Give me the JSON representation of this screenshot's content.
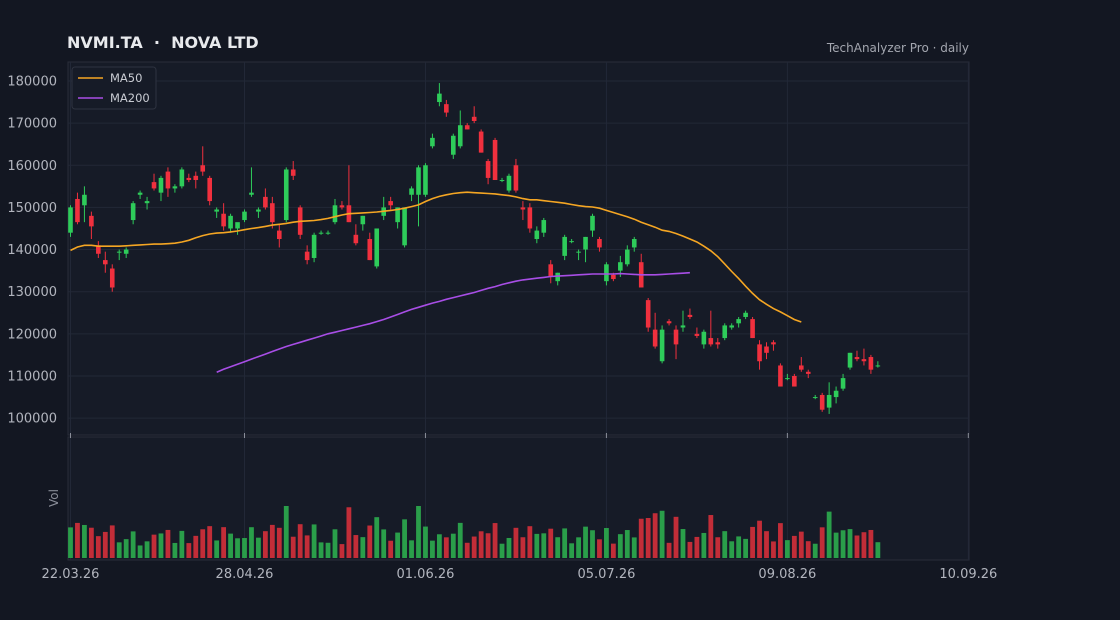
{
  "header": {
    "title": "NVMI.TA  ·  NOVA LTD",
    "source": "TechAnalyzer Pro · daily"
  },
  "colors": {
    "background": "#131722",
    "panel": "#161b27",
    "grid": "#222837",
    "up": "#2ecc5a",
    "down": "#f0303e",
    "ma50": "#f5a623",
    "ma200": "#a84ee6",
    "axis_text": "#b2b5be"
  },
  "chart_data": {
    "type": "candlestick",
    "title": "NVMI.TA  ·  NOVA LTD",
    "ylabel": "",
    "volume_label": "Vol",
    "ylim": [
      96000,
      184500
    ],
    "yticks": [
      100000,
      110000,
      120000,
      130000,
      140000,
      150000,
      160000,
      170000,
      180000
    ],
    "xticks": [
      "22.03.26",
      "28.04.26",
      "01.06.26",
      "05.07.26",
      "09.08.26",
      "10.09.26"
    ],
    "xtick_index": [
      0,
      25,
      51,
      77,
      103,
      129
    ],
    "grid": true,
    "legend": {
      "position": "top-left",
      "entries": [
        "MA50",
        "MA200"
      ]
    },
    "candles": [
      [
        144000,
        150500,
        143000,
        150000
      ],
      [
        152000,
        153500,
        146000,
        146500
      ],
      [
        150500,
        155000,
        146500,
        153000
      ],
      [
        148000,
        149000,
        142500,
        145500
      ],
      [
        141000,
        142000,
        138000,
        139000
      ],
      [
        137500,
        139500,
        134500,
        136500
      ],
      [
        135500,
        136500,
        130000,
        131000
      ],
      [
        139500,
        140000,
        137500,
        139500
      ],
      [
        139000,
        140500,
        138000,
        140000
      ],
      [
        147000,
        151500,
        146000,
        151000
      ],
      [
        153000,
        154000,
        152000,
        153500
      ],
      [
        151000,
        152500,
        149500,
        151500
      ],
      [
        156000,
        158000,
        154000,
        154500
      ],
      [
        153500,
        157500,
        151500,
        157000
      ],
      [
        158500,
        159500,
        152500,
        154500
      ],
      [
        154500,
        155500,
        153500,
        155000
      ],
      [
        155000,
        159500,
        154500,
        159000
      ],
      [
        157000,
        158000,
        156000,
        156500
      ],
      [
        157500,
        158500,
        154500,
        156500
      ],
      [
        160000,
        164500,
        157500,
        158500
      ],
      [
        157000,
        157500,
        150500,
        151500
      ],
      [
        149000,
        150000,
        147500,
        149500
      ],
      [
        148500,
        151000,
        144500,
        145500
      ],
      [
        145000,
        148500,
        144000,
        148000
      ],
      [
        145000,
        146000,
        143500,
        146500
      ],
      [
        147000,
        149500,
        146500,
        149000
      ],
      [
        153000,
        159500,
        152500,
        153500
      ],
      [
        149000,
        150000,
        147500,
        149500
      ],
      [
        152500,
        154500,
        149500,
        150000
      ],
      [
        151000,
        152500,
        145000,
        146500
      ],
      [
        144500,
        146000,
        140500,
        142500
      ],
      [
        147000,
        159500,
        146500,
        159000
      ],
      [
        159000,
        161000,
        156500,
        157500
      ],
      [
        150000,
        150500,
        142500,
        143500
      ],
      [
        139500,
        141000,
        136500,
        137500
      ],
      [
        138000,
        144000,
        137000,
        143500
      ],
      [
        144000,
        144500,
        143500,
        144000
      ],
      [
        144000,
        144500,
        143500,
        144000
      ],
      [
        146500,
        152000,
        146000,
        150500
      ],
      [
        150500,
        151500,
        149500,
        150000
      ],
      [
        150500,
        160000,
        146500,
        146500
      ],
      [
        143500,
        146000,
        141000,
        141500
      ],
      [
        146000,
        148000,
        144500,
        148000
      ],
      [
        142500,
        144000,
        137500,
        137500
      ],
      [
        136000,
        145000,
        135500,
        145000
      ],
      [
        148000,
        152500,
        147000,
        150000
      ],
      [
        151500,
        152500,
        149500,
        150500
      ],
      [
        146500,
        150000,
        145000,
        150000
      ],
      [
        141000,
        150000,
        140500,
        150000
      ],
      [
        153000,
        155000,
        151500,
        154500
      ],
      [
        153000,
        160000,
        145500,
        159500
      ],
      [
        153000,
        160500,
        152500,
        160000
      ],
      [
        164500,
        167500,
        164000,
        166500
      ],
      [
        175000,
        179500,
        174000,
        177000
      ],
      [
        174500,
        175500,
        171500,
        172500
      ],
      [
        162500,
        167500,
        161500,
        167000
      ],
      [
        164500,
        173000,
        164000,
        169500
      ],
      [
        169500,
        170000,
        168500,
        168500
      ],
      [
        171500,
        174000,
        170000,
        170500
      ],
      [
        168000,
        168500,
        163000,
        163000
      ],
      [
        161000,
        161500,
        155500,
        157000
      ],
      [
        166000,
        166500,
        156500,
        156500
      ],
      [
        156500,
        157000,
        156000,
        156500
      ],
      [
        154000,
        158000,
        153500,
        157500
      ],
      [
        160000,
        161500,
        153500,
        154000
      ],
      [
        150000,
        151500,
        147000,
        149500
      ],
      [
        150000,
        151000,
        144000,
        145000
      ],
      [
        142500,
        145500,
        141500,
        144500
      ],
      [
        144000,
        147500,
        143000,
        147000
      ],
      [
        136500,
        137500,
        132000,
        133500
      ],
      [
        132500,
        134500,
        131500,
        134500
      ],
      [
        138500,
        143500,
        137500,
        143000
      ],
      [
        142000,
        142500,
        141500,
        142000
      ],
      [
        139500,
        140000,
        137500,
        139500
      ],
      [
        140000,
        143000,
        137000,
        143000
      ],
      [
        144500,
        148500,
        143000,
        148000
      ],
      [
        142500,
        143000,
        139500,
        140500
      ],
      [
        132500,
        137000,
        131500,
        136500
      ],
      [
        134000,
        134500,
        132500,
        133000
      ],
      [
        135000,
        138500,
        133500,
        137000
      ],
      [
        136500,
        141000,
        136000,
        140000
      ],
      [
        140500,
        143000,
        139500,
        142500
      ],
      [
        137000,
        139000,
        131000,
        131000
      ],
      [
        128000,
        128500,
        120500,
        121500
      ],
      [
        121000,
        125000,
        116500,
        117000
      ],
      [
        113500,
        122000,
        113000,
        121000
      ],
      [
        123000,
        123500,
        122000,
        122500
      ],
      [
        121000,
        122000,
        114000,
        117500
      ],
      [
        121500,
        125500,
        120500,
        122000
      ],
      [
        124500,
        126000,
        123500,
        124000
      ],
      [
        120000,
        121500,
        119000,
        119500
      ],
      [
        117500,
        121000,
        116500,
        120500
      ],
      [
        119000,
        125500,
        117000,
        117500
      ],
      [
        118000,
        119000,
        116500,
        117500
      ],
      [
        119000,
        122500,
        118500,
        122000
      ],
      [
        121500,
        122500,
        121000,
        122000
      ],
      [
        122500,
        124000,
        121500,
        123500
      ],
      [
        124000,
        125500,
        123500,
        125000
      ],
      [
        123500,
        124000,
        119000,
        119000
      ],
      [
        117500,
        118500,
        111500,
        113500
      ],
      [
        117000,
        118000,
        114000,
        115500
      ],
      [
        118000,
        118500,
        116000,
        117500
      ],
      [
        112500,
        113000,
        107500,
        107500
      ],
      [
        109500,
        110500,
        109000,
        109500
      ],
      [
        110000,
        110500,
        107500,
        107500
      ],
      [
        112500,
        114500,
        111000,
        111500
      ],
      [
        111000,
        111500,
        109500,
        110500
      ],
      [
        105000,
        105500,
        104500,
        105000
      ],
      [
        105500,
        106000,
        101500,
        102000
      ],
      [
        102500,
        108500,
        101000,
        105500
      ],
      [
        105000,
        107500,
        103500,
        106500
      ],
      [
        107000,
        110500,
        106500,
        109500
      ],
      [
        112000,
        115500,
        111500,
        115500
      ],
      [
        114500,
        116000,
        113500,
        114000
      ],
      [
        114000,
        116500,
        112500,
        113500
      ],
      [
        114500,
        115000,
        110500,
        111500
      ],
      [
        112500,
        113500,
        112000,
        112500
      ]
    ],
    "ma50": [
      139800,
      140600,
      141000,
      141000,
      140800,
      140800,
      140800,
      140800,
      140900,
      141000,
      141100,
      141200,
      141300,
      141300,
      141400,
      141500,
      141800,
      142200,
      142800,
      143300,
      143700,
      143900,
      144000,
      144200,
      144400,
      144700,
      145000,
      145200,
      145500,
      145800,
      146000,
      146200,
      146500,
      146700,
      146800,
      146900,
      147100,
      147400,
      147800,
      148200,
      148500,
      148600,
      148700,
      148800,
      148900,
      149100,
      149300,
      149500,
      149800,
      150200,
      150600,
      151400,
      152100,
      152600,
      153000,
      153300,
      153500,
      153600,
      153500,
      153400,
      153300,
      153200,
      153000,
      152800,
      152500,
      152100,
      151800,
      151800,
      151600,
      151400,
      151200,
      151000,
      150700,
      150400,
      150200,
      150100,
      149800,
      149300,
      148800,
      148300,
      147800,
      147200,
      146500,
      145900,
      145300,
      144600,
      144300,
      143800,
      143200,
      142500,
      141800,
      140800,
      139700,
      138300,
      136600,
      134800,
      133100,
      131300,
      129600,
      128100,
      127000,
      126000,
      125200,
      124300,
      123400,
      122800
    ],
    "ma200_start": 21,
    "ma200": [
      110900,
      111600,
      112200,
      112800,
      113400,
      114000,
      114600,
      115200,
      115800,
      116400,
      117000,
      117500,
      118000,
      118500,
      119000,
      119500,
      120000,
      120400,
      120800,
      121200,
      121600,
      122000,
      122400,
      122900,
      123400,
      124000,
      124600,
      125200,
      125800,
      126300,
      126800,
      127300,
      127700,
      128200,
      128600,
      129000,
      129400,
      129800,
      130300,
      130800,
      131200,
      131700,
      132100,
      132500,
      132800,
      133000,
      133200,
      133400,
      133600,
      133700,
      133800,
      133900,
      134000,
      134100,
      134200,
      134200,
      134200,
      134200,
      134300,
      134200,
      134100,
      134000,
      134000,
      134000,
      134100,
      134200,
      134300,
      134400,
      134500
    ]
  }
}
